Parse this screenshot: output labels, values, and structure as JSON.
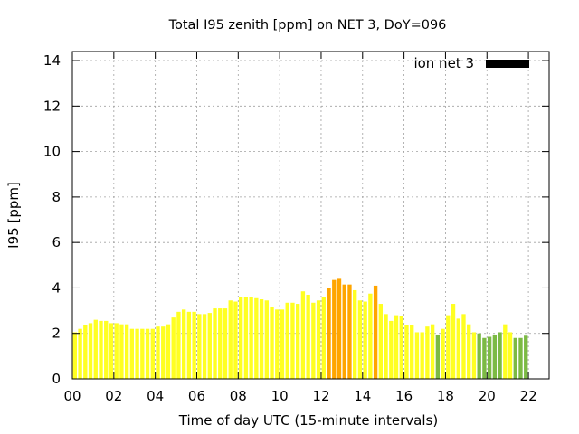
{
  "chart_data": {
    "type": "bar",
    "title": "Total I95 zenith [ppm] on NET 3, DoY=096",
    "xlabel": "Time of day UTC (15-minute intervals)",
    "ylabel": "I95 [ppm]",
    "xlim": [
      0,
      23
    ],
    "ylim": [
      0,
      14.4
    ],
    "xticks": [
      "00",
      "02",
      "04",
      "06",
      "08",
      "10",
      "12",
      "14",
      "16",
      "18",
      "20",
      "22"
    ],
    "yticks": [
      "0",
      "2",
      "4",
      "6",
      "8",
      "10",
      "12",
      "14"
    ],
    "grid": true,
    "legend": {
      "position": "top-right",
      "label": "ion net 3",
      "color": "#000000"
    },
    "color_levels": {
      "green": "#7cba44",
      "yellow": "#ffff22",
      "orange": "#ffa500"
    },
    "interval_hours": 0.25,
    "values": [
      2.05,
      2.2,
      2.35,
      2.45,
      2.6,
      2.55,
      2.55,
      2.45,
      2.45,
      2.4,
      2.4,
      2.2,
      2.2,
      2.2,
      2.2,
      2.2,
      2.3,
      2.3,
      2.4,
      2.7,
      2.95,
      3.05,
      2.95,
      2.95,
      2.85,
      2.85,
      2.9,
      3.1,
      3.1,
      3.1,
      3.45,
      3.4,
      3.6,
      3.6,
      3.6,
      3.55,
      3.5,
      3.45,
      3.15,
      3.05,
      3.05,
      3.35,
      3.35,
      3.3,
      3.85,
      3.7,
      3.35,
      3.45,
      3.6,
      4.0,
      4.35,
      4.4,
      4.15,
      4.15,
      3.9,
      3.45,
      3.4,
      3.75,
      4.1,
      3.3,
      2.85,
      2.55,
      2.8,
      2.75,
      2.35,
      2.35,
      2.05,
      2.05,
      2.3,
      2.4,
      1.95,
      2.2,
      2.8,
      3.3,
      2.65,
      2.85,
      2.4,
      2.05,
      2.0,
      1.8,
      1.85,
      1.95,
      2.05,
      2.4,
      2.05,
      1.8,
      1.8,
      1.9
    ],
    "levels": [
      "yellow",
      "yellow",
      "yellow",
      "yellow",
      "yellow",
      "yellow",
      "yellow",
      "yellow",
      "yellow",
      "yellow",
      "yellow",
      "yellow",
      "yellow",
      "yellow",
      "yellow",
      "yellow",
      "yellow",
      "yellow",
      "yellow",
      "yellow",
      "yellow",
      "yellow",
      "yellow",
      "yellow",
      "yellow",
      "yellow",
      "yellow",
      "yellow",
      "yellow",
      "yellow",
      "yellow",
      "yellow",
      "yellow",
      "yellow",
      "yellow",
      "yellow",
      "yellow",
      "yellow",
      "yellow",
      "yellow",
      "yellow",
      "yellow",
      "yellow",
      "yellow",
      "yellow",
      "yellow",
      "yellow",
      "yellow",
      "yellow",
      "orange",
      "orange",
      "orange",
      "orange",
      "orange",
      "yellow",
      "yellow",
      "yellow",
      "yellow",
      "orange",
      "yellow",
      "yellow",
      "yellow",
      "yellow",
      "yellow",
      "yellow",
      "yellow",
      "yellow",
      "yellow",
      "yellow",
      "yellow",
      "green",
      "yellow",
      "yellow",
      "yellow",
      "yellow",
      "yellow",
      "yellow",
      "yellow",
      "green",
      "green",
      "green",
      "green",
      "green",
      "yellow",
      "yellow",
      "green",
      "green",
      "green"
    ]
  }
}
